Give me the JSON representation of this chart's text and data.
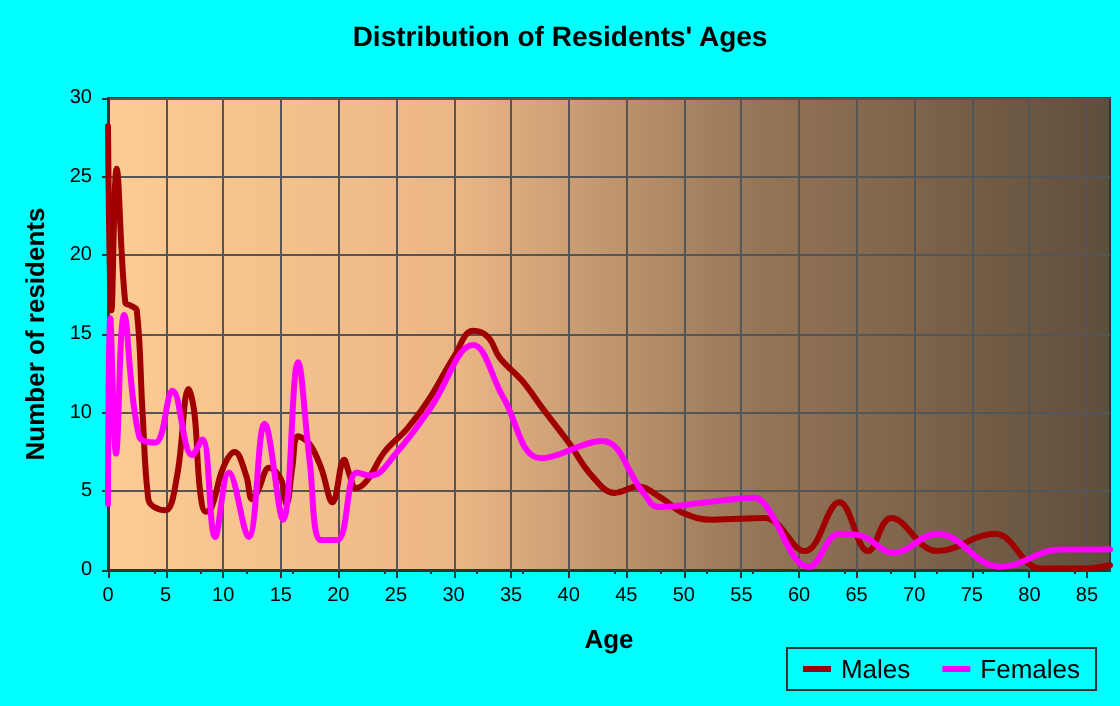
{
  "chart_data": {
    "type": "line",
    "title": "Distribution of Residents' Ages",
    "xlabel": "Age",
    "ylabel": "Number of residents",
    "xlim": [
      0,
      87
    ],
    "xticks": [
      0,
      5,
      10,
      15,
      20,
      25,
      30,
      35,
      40,
      45,
      50,
      55,
      60,
      65,
      70,
      75,
      80,
      85
    ],
    "ylim": [
      0,
      30
    ],
    "yticks": [
      0,
      5,
      10,
      15,
      20,
      25,
      30
    ],
    "grid": true,
    "legend": "bottom right",
    "marker": "none",
    "line_style": "solid",
    "series": [
      {
        "name": "Males",
        "color": "#a00000",
        "x": [
          0,
          0.3,
          0.75,
          1.5,
          2,
          2.5,
          3,
          3.5,
          4,
          5,
          6,
          7,
          7.5,
          8,
          8.5,
          9,
          10,
          11,
          12,
          12.5,
          13,
          14,
          15,
          15.5,
          16,
          16.5,
          17.5,
          18.5,
          19.5,
          20.5,
          21,
          21.5,
          22.5,
          24,
          26,
          28,
          30,
          31.7,
          33,
          34,
          36,
          37.6,
          40,
          42,
          44,
          46,
          48,
          50,
          52.5,
          57,
          60.5,
          63.5,
          66,
          68,
          72,
          77,
          81,
          85,
          87
        ],
        "values": [
          28.2,
          16.5,
          25.5,
          17,
          16.8,
          16.5,
          10,
          4.5,
          4,
          3.8,
          6,
          11.5,
          10,
          5,
          3.7,
          4,
          6.5,
          7.5,
          6,
          4.5,
          5,
          6.5,
          5.8,
          4.2,
          6.5,
          8.5,
          8,
          6.5,
          4.3,
          7,
          6,
          5.2,
          5.7,
          7.5,
          9,
          11,
          13.5,
          15.2,
          14.8,
          13.5,
          12,
          10.4,
          8.1,
          6,
          4.9,
          5.3,
          4.6,
          3.6,
          3.2,
          3.3,
          1.2,
          4.3,
          1.2,
          3.3,
          1.2,
          2.3,
          0.1,
          0.1,
          0.3
        ]
      },
      {
        "name": "Females",
        "color": "#ff00ff",
        "x": [
          0,
          0.2,
          0.7,
          1.4,
          2.7,
          4.1,
          5.6,
          7.3,
          8.2,
          9.3,
          10.5,
          12.2,
          13.6,
          15.2,
          16.5,
          17.5,
          18.5,
          19.9,
          21.6,
          22.8,
          25.1,
          28,
          31.7,
          34.3,
          37.6,
          42.9,
          46.4,
          47.8,
          52,
          56.1,
          57,
          60.9,
          63.5,
          65.3,
          68.2,
          72,
          77.5,
          82.7,
          87
        ],
        "values": [
          4.2,
          16,
          7.4,
          16.2,
          8.5,
          8.1,
          11.4,
          7.3,
          8.3,
          2.1,
          6.2,
          2.1,
          9.3,
          3.2,
          13.2,
          7,
          1.9,
          1.9,
          6.2,
          6,
          7.5,
          10.3,
          14.3,
          11,
          7.1,
          8.2,
          5,
          4,
          4.3,
          4.6,
          4.2,
          0.2,
          2.3,
          2.2,
          1.1,
          2.3,
          0.2,
          1.3,
          1.3
        ]
      }
    ]
  }
}
